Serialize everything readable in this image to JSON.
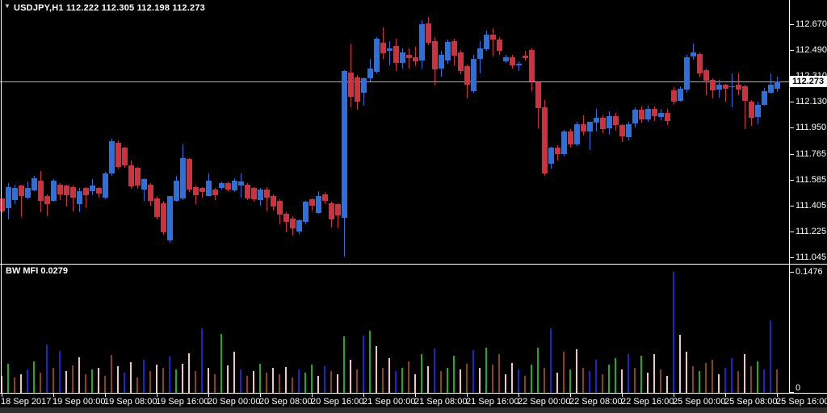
{
  "window": {
    "title": "USDJPY,H1  112.222 112.305 112.198 112.273",
    "symbol": "USDJPY",
    "timeframe": "H1"
  },
  "price_axis": {
    "current_price": "112.273",
    "tick_labels": [
      "112.670",
      "112.490",
      "112.310",
      "112.130",
      "111.950",
      "111.765",
      "111.585",
      "111.405",
      "111.225",
      "111.045"
    ]
  },
  "indicator_panel": {
    "label": "BW MFI 0.0279",
    "max_label": "0.1476",
    "min_label": "0"
  },
  "time_axis": {
    "labels": [
      "18 Sep 2017",
      "19 Sep 00:00",
      "19 Sep 08:00",
      "19 Sep 16:00",
      "20 Sep 00:00",
      "20 Sep 08:00",
      "20 Sep 16:00",
      "21 Sep 00:00",
      "21 Sep 08:00",
      "21 Sep 16:00",
      "22 Sep 00:00",
      "22 Sep 08:00",
      "22 Sep 16:00",
      "25 Sep 00:00",
      "25 Sep 08:00",
      "25 Sep 16:00"
    ],
    "bars_per_label": 8
  },
  "colors": {
    "background": "#000000",
    "bull": "#2e6fe0",
    "bear": "#d1303e",
    "price_line": "#9fb2c8",
    "axis_line": "#ffffff",
    "text": "#ffffff",
    "price_box_bg": "#ffffff",
    "price_box_text": "#000000",
    "hist_palette": {
      "g": "#1fae1f",
      "n": "#8b4513",
      "b": "#2222cc",
      "p": "#eec3c3"
    }
  },
  "chart_data": {
    "type": "candlestick+histogram",
    "title": "USDJPY,H1",
    "last_bar_ohlc": [
      112.222,
      112.305,
      112.198,
      112.273
    ],
    "current_price": 112.273,
    "price_ylim": [
      111.003,
      112.842
    ],
    "price_ticks": [
      112.67,
      112.49,
      112.31,
      112.13,
      111.95,
      111.765,
      111.585,
      111.405,
      111.225,
      111.045
    ],
    "indicator": {
      "name": "BW MFI",
      "current_value": 0.0279,
      "ylim": [
        0,
        0.1546
      ],
      "max_tick": 0.1476,
      "min_tick": 0
    },
    "candles_ohlc": [
      [
        111.452,
        111.457,
        111.356,
        111.362
      ],
      [
        111.384,
        111.559,
        111.305,
        111.531
      ],
      [
        111.44,
        111.553,
        111.417,
        111.525
      ],
      [
        111.542,
        111.553,
        111.328,
        111.469
      ],
      [
        111.457,
        111.57,
        111.446,
        111.525
      ],
      [
        111.514,
        111.61,
        111.503,
        111.598
      ],
      [
        111.581,
        111.644,
        111.356,
        111.44
      ],
      [
        111.474,
        111.485,
        111.333,
        111.417
      ],
      [
        111.44,
        111.587,
        111.429,
        111.581
      ],
      [
        111.553,
        111.559,
        111.44,
        111.485
      ],
      [
        111.542,
        111.553,
        111.401,
        111.474
      ],
      [
        111.531,
        111.542,
        111.362,
        111.457
      ],
      [
        111.412,
        111.525,
        111.356,
        111.503
      ],
      [
        111.525,
        111.531,
        111.384,
        111.474
      ],
      [
        111.503,
        111.587,
        111.474,
        111.542
      ],
      [
        111.525,
        111.531,
        111.457,
        111.485
      ],
      [
        111.457,
        111.638,
        111.446,
        111.627
      ],
      [
        111.627,
        111.869,
        111.61,
        111.852
      ],
      [
        111.841,
        111.863,
        111.666,
        111.672
      ],
      [
        111.807,
        111.813,
        111.666,
        111.683
      ],
      [
        111.683,
        111.722,
        111.525,
        111.536
      ],
      [
        111.666,
        111.677,
        111.525,
        111.542
      ],
      [
        111.514,
        111.598,
        111.44,
        111.587
      ],
      [
        111.553,
        111.559,
        111.401,
        111.44
      ],
      [
        111.457,
        111.469,
        111.305,
        111.328
      ],
      [
        111.418,
        111.44,
        111.204,
        111.215
      ],
      [
        111.158,
        111.474,
        111.147,
        111.469
      ],
      [
        111.44,
        111.61,
        111.429,
        111.581
      ],
      [
        111.457,
        111.835,
        111.446,
        111.739
      ],
      [
        111.728,
        111.739,
        111.503,
        111.514
      ],
      [
        111.531,
        111.542,
        111.412,
        111.474
      ],
      [
        111.525,
        111.531,
        111.457,
        111.497
      ],
      [
        111.474,
        111.627,
        111.469,
        111.581
      ],
      [
        111.514,
        111.525,
        111.44,
        111.474
      ],
      [
        111.525,
        111.57,
        111.514,
        111.559
      ],
      [
        111.559,
        111.57,
        111.503,
        111.514
      ],
      [
        111.514,
        111.598,
        111.503,
        111.581
      ],
      [
        111.542,
        111.627,
        111.457,
        111.57
      ],
      [
        111.553,
        111.559,
        111.44,
        111.457
      ],
      [
        111.525,
        111.531,
        111.429,
        111.446
      ],
      [
        111.44,
        111.525,
        111.401,
        111.514
      ],
      [
        111.514,
        111.531,
        111.362,
        111.457
      ],
      [
        111.474,
        111.485,
        111.373,
        111.401
      ],
      [
        111.44,
        111.446,
        111.271,
        111.345
      ],
      [
        111.345,
        111.356,
        111.215,
        111.288
      ],
      [
        111.316,
        111.328,
        111.192,
        111.249
      ],
      [
        111.221,
        111.305,
        111.204,
        111.3
      ],
      [
        111.288,
        111.44,
        111.277,
        111.429
      ],
      [
        111.446,
        111.457,
        111.373,
        111.401
      ],
      [
        111.356,
        111.503,
        111.345,
        111.474
      ],
      [
        111.485,
        111.497,
        111.412,
        111.44
      ],
      [
        111.418,
        111.429,
        111.249,
        111.305
      ],
      [
        111.412,
        111.423,
        111.249,
        111.333
      ],
      [
        111.316,
        112.349,
        111.046,
        112.343
      ],
      [
        112.332,
        112.54,
        112.095,
        112.162
      ],
      [
        112.303,
        112.32,
        112.078,
        112.134
      ],
      [
        112.191,
        112.303,
        112.106,
        112.292
      ],
      [
        112.292,
        112.433,
        112.275,
        112.36
      ],
      [
        112.343,
        112.585,
        112.332,
        112.574
      ],
      [
        112.545,
        112.653,
        112.433,
        112.473
      ],
      [
        112.484,
        112.557,
        112.388,
        112.501
      ],
      [
        112.518,
        112.574,
        112.349,
        112.399
      ],
      [
        112.399,
        112.501,
        112.36,
        112.473
      ],
      [
        112.456,
        112.501,
        112.36,
        112.433
      ],
      [
        112.444,
        112.512,
        112.377,
        112.416
      ],
      [
        112.416,
        112.7,
        112.36,
        112.67
      ],
      [
        112.681,
        112.726,
        112.529,
        112.546
      ],
      [
        112.557,
        112.585,
        112.247,
        112.36
      ],
      [
        112.36,
        112.484,
        112.303,
        112.456
      ],
      [
        112.416,
        112.568,
        112.399,
        112.546
      ],
      [
        112.557,
        112.574,
        112.388,
        112.456
      ],
      [
        112.473,
        112.49,
        112.32,
        112.343
      ],
      [
        112.377,
        112.388,
        112.151,
        112.247
      ],
      [
        112.208,
        112.456,
        112.191,
        112.433
      ],
      [
        112.428,
        112.557,
        112.332,
        112.501
      ],
      [
        112.501,
        112.625,
        112.484,
        112.602
      ],
      [
        112.602,
        112.642,
        112.444,
        112.568
      ],
      [
        112.568,
        112.585,
        112.462,
        112.49
      ],
      [
        112.416,
        112.456,
        112.399,
        112.444
      ],
      [
        112.444,
        112.456,
        112.36,
        112.388
      ],
      [
        112.388,
        112.416,
        112.349,
        112.399
      ],
      [
        112.45,
        112.484,
        112.416,
        112.433
      ],
      [
        112.49,
        112.501,
        112.202,
        112.269
      ],
      [
        112.269,
        112.275,
        111.946,
        112.089
      ],
      [
        112.089,
        112.145,
        111.616,
        111.627
      ],
      [
        111.694,
        111.813,
        111.66,
        111.807
      ],
      [
        111.807,
        111.824,
        111.716,
        111.762
      ],
      [
        111.762,
        111.931,
        111.745,
        111.92
      ],
      [
        111.92,
        111.937,
        111.807,
        111.829
      ],
      [
        111.829,
        111.988,
        111.818,
        111.971
      ],
      [
        111.971,
        112.033,
        111.891,
        111.92
      ],
      [
        111.92,
        111.993,
        111.796,
        111.988
      ],
      [
        111.988,
        112.078,
        111.92,
        112.021
      ],
      [
        112.021,
        112.033,
        111.909,
        111.943
      ],
      [
        111.943,
        112.061,
        111.897,
        112.027
      ],
      [
        112.027,
        112.05,
        111.926,
        111.965
      ],
      [
        111.965,
        111.976,
        111.852,
        111.886
      ],
      [
        111.886,
        111.993,
        111.863,
        111.976
      ],
      [
        111.976,
        112.089,
        111.948,
        112.072
      ],
      [
        112.072,
        112.095,
        111.982,
        112.004
      ],
      [
        112.004,
        112.101,
        111.988,
        112.078
      ],
      [
        112.078,
        112.095,
        111.993,
        112.027
      ],
      [
        112.027,
        112.078,
        111.999,
        112.055
      ],
      [
        112.055,
        112.078,
        111.965,
        111.999
      ],
      [
        112.212,
        112.23,
        112.106,
        112.134
      ],
      [
        112.134,
        112.236,
        112.128,
        112.219
      ],
      [
        112.219,
        112.456,
        112.19,
        112.444
      ],
      [
        112.444,
        112.54,
        112.428,
        112.473
      ],
      [
        112.462,
        112.473,
        112.303,
        112.326
      ],
      [
        112.349,
        112.36,
        112.174,
        112.275
      ],
      [
        112.286,
        112.292,
        112.151,
        112.212
      ],
      [
        112.212,
        112.286,
        112.162,
        112.247
      ],
      [
        112.247,
        112.258,
        112.134,
        112.219
      ],
      [
        112.23,
        112.326,
        112.089,
        112.236
      ],
      [
        112.247,
        112.326,
        112.174,
        112.212
      ],
      [
        112.236,
        112.247,
        111.937,
        112.134
      ],
      [
        112.134,
        112.145,
        111.965,
        112.021
      ],
      [
        112.021,
        112.134,
        111.974,
        112.106
      ],
      [
        112.106,
        112.225,
        112.1,
        112.202
      ],
      [
        112.191,
        112.326,
        112.185,
        112.247
      ],
      [
        112.222,
        112.305,
        112.198,
        112.273
      ]
    ],
    "mfi_values": [
      [
        0.02,
        "p"
      ],
      [
        0.035,
        "g"
      ],
      [
        0.018,
        "n"
      ],
      [
        0.022,
        "p"
      ],
      [
        0.028,
        "b"
      ],
      [
        0.038,
        "g"
      ],
      [
        0.024,
        "n"
      ],
      [
        0.058,
        "b"
      ],
      [
        0.03,
        "n"
      ],
      [
        0.051,
        "b"
      ],
      [
        0.026,
        "p"
      ],
      [
        0.033,
        "n"
      ],
      [
        0.043,
        "p"
      ],
      [
        0.022,
        "n"
      ],
      [
        0.028,
        "g"
      ],
      [
        0.03,
        "p"
      ],
      [
        0.02,
        "n"
      ],
      [
        0.046,
        "n"
      ],
      [
        0.032,
        "p"
      ],
      [
        0.024,
        "b"
      ],
      [
        0.037,
        "p"
      ],
      [
        0.018,
        "n"
      ],
      [
        0.04,
        "b"
      ],
      [
        0.026,
        "n"
      ],
      [
        0.034,
        "p"
      ],
      [
        0.03,
        "n"
      ],
      [
        0.044,
        "b"
      ],
      [
        0.028,
        "g"
      ],
      [
        0.035,
        "p"
      ],
      [
        0.048,
        "p"
      ],
      [
        0.026,
        "n"
      ],
      [
        0.078,
        "b"
      ],
      [
        0.03,
        "p"
      ],
      [
        0.022,
        "n"
      ],
      [
        0.071,
        "g"
      ],
      [
        0.033,
        "p"
      ],
      [
        0.05,
        "p"
      ],
      [
        0.028,
        "b"
      ],
      [
        0.02,
        "n"
      ],
      [
        0.026,
        "p"
      ],
      [
        0.035,
        "g"
      ],
      [
        0.024,
        "n"
      ],
      [
        0.03,
        "p"
      ],
      [
        0.022,
        "n"
      ],
      [
        0.031,
        "p"
      ],
      [
        0.018,
        "n"
      ],
      [
        0.028,
        "b"
      ],
      [
        0.024,
        "g"
      ],
      [
        0.034,
        "g"
      ],
      [
        0.02,
        "p"
      ],
      [
        0.032,
        "b"
      ],
      [
        0.026,
        "n"
      ],
      [
        0.022,
        "p"
      ],
      [
        0.068,
        "g"
      ],
      [
        0.04,
        "p"
      ],
      [
        0.028,
        "n"
      ],
      [
        0.069,
        "b"
      ],
      [
        0.075,
        "g"
      ],
      [
        0.056,
        "p"
      ],
      [
        0.03,
        "n"
      ],
      [
        0.042,
        "p"
      ],
      [
        0.026,
        "b"
      ],
      [
        0.03,
        "g"
      ],
      [
        0.038,
        "n"
      ],
      [
        0.022,
        "p"
      ],
      [
        0.047,
        "g"
      ],
      [
        0.032,
        "p"
      ],
      [
        0.054,
        "b"
      ],
      [
        0.026,
        "n"
      ],
      [
        0.03,
        "g"
      ],
      [
        0.045,
        "g"
      ],
      [
        0.028,
        "p"
      ],
      [
        0.035,
        "n"
      ],
      [
        0.052,
        "b"
      ],
      [
        0.03,
        "p"
      ],
      [
        0.055,
        "g"
      ],
      [
        0.034,
        "n"
      ],
      [
        0.047,
        "n"
      ],
      [
        0.022,
        "p"
      ],
      [
        0.036,
        "p"
      ],
      [
        0.028,
        "b"
      ],
      [
        0.02,
        "n"
      ],
      [
        0.034,
        "g"
      ],
      [
        0.055,
        "g"
      ],
      [
        0.03,
        "n"
      ],
      [
        0.078,
        "b"
      ],
      [
        0.024,
        "p"
      ],
      [
        0.05,
        "n"
      ],
      [
        0.028,
        "g"
      ],
      [
        0.053,
        "p"
      ],
      [
        0.03,
        "n"
      ],
      [
        0.026,
        "b"
      ],
      [
        0.04,
        "b"
      ],
      [
        0.022,
        "n"
      ],
      [
        0.034,
        "g"
      ],
      [
        0.042,
        "g"
      ],
      [
        0.028,
        "p"
      ],
      [
        0.047,
        "b"
      ],
      [
        0.03,
        "n"
      ],
      [
        0.045,
        "g"
      ],
      [
        0.024,
        "p"
      ],
      [
        0.047,
        "p"
      ],
      [
        0.028,
        "n"
      ],
      [
        0.02,
        "p"
      ],
      [
        0.1476,
        "b"
      ],
      [
        0.07,
        "p"
      ],
      [
        0.05,
        "p"
      ],
      [
        0.032,
        "n"
      ],
      [
        0.026,
        "g"
      ],
      [
        0.036,
        "n"
      ],
      [
        0.04,
        "n"
      ],
      [
        0.022,
        "p"
      ],
      [
        0.03,
        "b"
      ],
      [
        0.042,
        "b"
      ],
      [
        0.026,
        "n"
      ],
      [
        0.047,
        "p"
      ],
      [
        0.032,
        "n"
      ],
      [
        0.038,
        "g"
      ],
      [
        0.028,
        "b"
      ],
      [
        0.088,
        "b"
      ],
      [
        0.0279,
        "n"
      ]
    ]
  }
}
